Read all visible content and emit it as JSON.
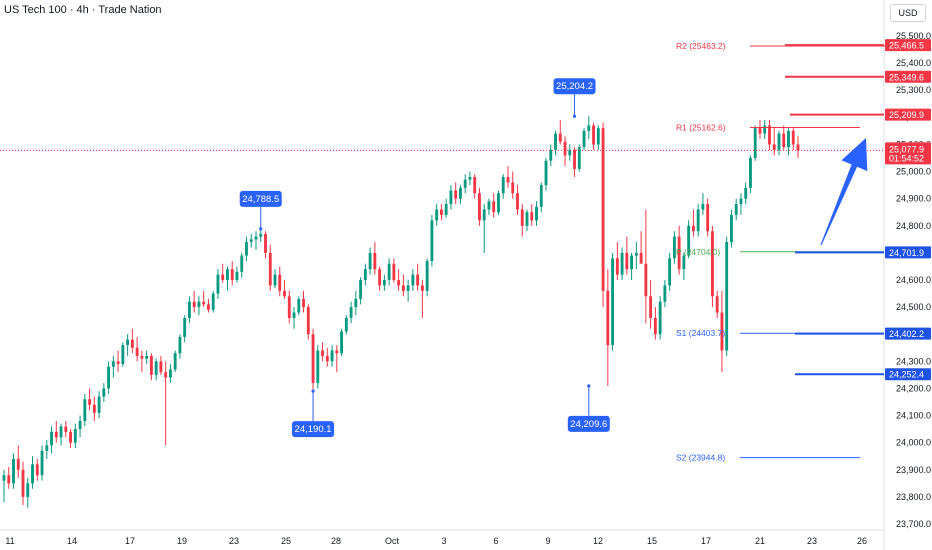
{
  "header": {
    "title": "US Tech 100 · 4h · Trade Nation",
    "currency": "USD"
  },
  "chart_data": {
    "type": "candlestick",
    "x_tick_labels": [
      "11",
      "14",
      "17",
      "19",
      "23",
      "25",
      "28",
      "Oct",
      "3",
      "6",
      "9",
      "12",
      "15",
      "17",
      "21",
      "23",
      "26"
    ],
    "y_tick_labels": [
      "25,500.0",
      "25,400.0",
      "25,300.0",
      "25,200.0",
      "25,100.0",
      "25,000.0",
      "24,900.0",
      "24,800.0",
      "24,700.0",
      "24,600.0",
      "24,500.0",
      "24,400.0",
      "24,300.0",
      "24,200.0",
      "24,100.0",
      "24,000.0",
      "23,900.0",
      "23,800.0",
      "23,700.0"
    ],
    "ylim": [
      23700,
      25500
    ],
    "last_price": {
      "value": 25077.9,
      "label": "25,077.9",
      "countdown": "01:54:52",
      "color": "#f23645"
    },
    "pivot_levels": [
      {
        "name": "R2",
        "label": "R2 (25463.2)",
        "value": 25463.2,
        "color": "#f23645"
      },
      {
        "name": "R1",
        "label": "R1 (25162.6)",
        "value": 25162.6,
        "color": "#f23645"
      },
      {
        "name": "P",
        "label": "P (24704.0)",
        "value": 24704.0,
        "color": "#4caf50"
      },
      {
        "name": "S1",
        "label": "S1 (24403.7)",
        "value": 24403.7,
        "color": "#2962ff"
      },
      {
        "name": "S2",
        "label": "S2 (23944.8)",
        "value": 23944.8,
        "color": "#2962ff"
      }
    ],
    "horizontal_levels": [
      {
        "value": 25466.5,
        "label": "25,466.5",
        "color": "#f23645"
      },
      {
        "value": 25349.6,
        "label": "25,349.6",
        "color": "#f23645"
      },
      {
        "value": 25209.9,
        "label": "25,209.9",
        "color": "#f23645"
      },
      {
        "value": 24701.9,
        "label": "24,701.9",
        "color": "#1e53e5"
      },
      {
        "value": 24402.2,
        "label": "24,402.2",
        "color": "#1e53e5"
      },
      {
        "value": 24252.4,
        "label": "24,252.4",
        "color": "#1e53e5"
      }
    ],
    "extreme_labels": [
      {
        "label": "24,788.5",
        "value": 24788.5,
        "kind": "high"
      },
      {
        "label": "24,190.1",
        "value": 24190.1,
        "kind": "low"
      },
      {
        "label": "25,204.2",
        "value": 25204.2,
        "kind": "high"
      },
      {
        "label": "24,209.6",
        "value": 24209.6,
        "kind": "low"
      }
    ],
    "candles_ohlc": [
      [
        23860,
        23900,
        23780,
        23880
      ],
      [
        23880,
        23910,
        23830,
        23850
      ],
      [
        23850,
        23960,
        23830,
        23940
      ],
      [
        23940,
        23990,
        23870,
        23900
      ],
      [
        23900,
        23930,
        23770,
        23800
      ],
      [
        23800,
        23870,
        23760,
        23850
      ],
      [
        23850,
        23950,
        23830,
        23920
      ],
      [
        23920,
        23940,
        23860,
        23880
      ],
      [
        23880,
        23990,
        23860,
        23970
      ],
      [
        23970,
        24010,
        23940,
        23990
      ],
      [
        23990,
        24060,
        23960,
        24040
      ],
      [
        24040,
        24080,
        24000,
        24020
      ],
      [
        24020,
        24070,
        23990,
        24060
      ],
      [
        24060,
        24080,
        24020,
        24040
      ],
      [
        24040,
        24050,
        23980,
        24000
      ],
      [
        24000,
        24070,
        23980,
        24050
      ],
      [
        24050,
        24100,
        24020,
        24080
      ],
      [
        24080,
        24180,
        24060,
        24160
      ],
      [
        24160,
        24200,
        24120,
        24140
      ],
      [
        24140,
        24170,
        24080,
        24110
      ],
      [
        24110,
        24190,
        24090,
        24170
      ],
      [
        24170,
        24220,
        24150,
        24200
      ],
      [
        24200,
        24300,
        24180,
        24280
      ],
      [
        24280,
        24320,
        24240,
        24300
      ],
      [
        24300,
        24340,
        24260,
        24290
      ],
      [
        24290,
        24370,
        24280,
        24360
      ],
      [
        24360,
        24400,
        24320,
        24380
      ],
      [
        24380,
        24420,
        24330,
        24350
      ],
      [
        24350,
        24390,
        24300,
        24320
      ],
      [
        24320,
        24340,
        24260,
        24310
      ],
      [
        24310,
        24340,
        24290,
        24320
      ],
      [
        24320,
        24330,
        24230,
        24250
      ],
      [
        24250,
        24310,
        24230,
        24300
      ],
      [
        24300,
        24320,
        24250,
        24260
      ],
      [
        24260,
        24300,
        23990,
        24240
      ],
      [
        24240,
        24290,
        24220,
        24270
      ],
      [
        24270,
        24340,
        24260,
        24330
      ],
      [
        24330,
        24400,
        24310,
        24390
      ],
      [
        24390,
        24470,
        24370,
        24460
      ],
      [
        24460,
        24540,
        24440,
        24520
      ],
      [
        24520,
        24560,
        24480,
        24500
      ],
      [
        24500,
        24540,
        24470,
        24520
      ],
      [
        24520,
        24560,
        24500,
        24510
      ],
      [
        24510,
        24530,
        24480,
        24490
      ],
      [
        24490,
        24560,
        24480,
        24550
      ],
      [
        24550,
        24640,
        24530,
        24620
      ],
      [
        24620,
        24660,
        24590,
        24600
      ],
      [
        24600,
        24650,
        24560,
        24640
      ],
      [
        24640,
        24670,
        24580,
        24600
      ],
      [
        24600,
        24650,
        24590,
        24630
      ],
      [
        24630,
        24700,
        24610,
        24690
      ],
      [
        24690,
        24760,
        24670,
        24740
      ],
      [
        24740,
        24770,
        24720,
        24750
      ],
      [
        24750,
        24780,
        24710,
        24760
      ],
      [
        24760,
        24788.5,
        24740,
        24770
      ],
      [
        24770,
        24780,
        24680,
        24700
      ],
      [
        24700,
        24730,
        24560,
        24580
      ],
      [
        24580,
        24640,
        24570,
        24620
      ],
      [
        24620,
        24650,
        24540,
        24560
      ],
      [
        24560,
        24600,
        24530,
        24540
      ],
      [
        24540,
        24560,
        24440,
        24460
      ],
      [
        24460,
        24500,
        24420,
        24480
      ],
      [
        24480,
        24540,
        24470,
        24530
      ],
      [
        24530,
        24560,
        24480,
        24500
      ],
      [
        24500,
        24510,
        24380,
        24400
      ],
      [
        24400,
        24420,
        24190.1,
        24220
      ],
      [
        24220,
        24360,
        24200,
        24340
      ],
      [
        24340,
        24370,
        24300,
        24320
      ],
      [
        24320,
        24350,
        24280,
        24300
      ],
      [
        24300,
        24360,
        24280,
        24340
      ],
      [
        24340,
        24360,
        24260,
        24330
      ],
      [
        24330,
        24420,
        24320,
        24410
      ],
      [
        24410,
        24470,
        24400,
        24460
      ],
      [
        24460,
        24520,
        24440,
        24500
      ],
      [
        24500,
        24560,
        24470,
        24530
      ],
      [
        24530,
        24610,
        24510,
        24600
      ],
      [
        24600,
        24660,
        24580,
        24640
      ],
      [
        24640,
        24720,
        24620,
        24700
      ],
      [
        24700,
        24740,
        24620,
        24640
      ],
      [
        24640,
        24650,
        24560,
        24580
      ],
      [
        24580,
        24620,
        24560,
        24600
      ],
      [
        24600,
        24680,
        24580,
        24660
      ],
      [
        24660,
        24680,
        24590,
        24600
      ],
      [
        24600,
        24640,
        24560,
        24580
      ],
      [
        24580,
        24620,
        24540,
        24560
      ],
      [
        24560,
        24600,
        24520,
        24580
      ],
      [
        24580,
        24640,
        24560,
        24620
      ],
      [
        24620,
        24660,
        24560,
        24580
      ],
      [
        24580,
        24600,
        24460,
        24560
      ],
      [
        24560,
        24680,
        24540,
        24670
      ],
      [
        24670,
        24840,
        24650,
        24820
      ],
      [
        24820,
        24880,
        24800,
        24860
      ],
      [
        24860,
        24880,
        24820,
        24840
      ],
      [
        24840,
        24900,
        24830,
        24880
      ],
      [
        24880,
        24950,
        24860,
        24930
      ],
      [
        24930,
        24960,
        24880,
        24900
      ],
      [
        24900,
        24950,
        24880,
        24940
      ],
      [
        24940,
        24990,
        24920,
        24970
      ],
      [
        24970,
        25000,
        24950,
        24980
      ],
      [
        24980,
        24990,
        24900,
        24920
      ],
      [
        24920,
        24940,
        24800,
        24820
      ],
      [
        24820,
        24880,
        24700,
        24860
      ],
      [
        24860,
        24900,
        24840,
        24890
      ],
      [
        24890,
        24920,
        24830,
        24850
      ],
      [
        24850,
        24930,
        24840,
        24920
      ],
      [
        24920,
        24990,
        24900,
        24980
      ],
      [
        24980,
        25020,
        24940,
        24960
      ],
      [
        24960,
        25000,
        24900,
        24920
      ],
      [
        24920,
        24950,
        24840,
        24860
      ],
      [
        24860,
        24880,
        24760,
        24800
      ],
      [
        24800,
        24860,
        24780,
        24850
      ],
      [
        24850,
        24880,
        24800,
        24820
      ],
      [
        24820,
        24890,
        24800,
        24870
      ],
      [
        24870,
        24960,
        24850,
        24950
      ],
      [
        24950,
        25050,
        24930,
        25040
      ],
      [
        25040,
        25100,
        25020,
        25080
      ],
      [
        25080,
        25150,
        25060,
        25140
      ],
      [
        25140,
        25190,
        25100,
        25110
      ],
      [
        25110,
        25130,
        25020,
        25060
      ],
      [
        25060,
        25100,
        25040,
        25080
      ],
      [
        25080,
        25090,
        24980,
        25010
      ],
      [
        25010,
        25100,
        25000,
        25090
      ],
      [
        25090,
        25160,
        25080,
        25150
      ],
      [
        25150,
        25204.2,
        25120,
        25170
      ],
      [
        25170,
        25180,
        25080,
        25100
      ],
      [
        25100,
        25170,
        25080,
        25160
      ],
      [
        25160,
        25180,
        24500,
        24560
      ],
      [
        24560,
        24640,
        24209.6,
        24360
      ],
      [
        24360,
        24700,
        24340,
        24680
      ],
      [
        24680,
        24740,
        24600,
        24620
      ],
      [
        24620,
        24720,
        24600,
        24700
      ],
      [
        24700,
        24760,
        24620,
        24640
      ],
      [
        24640,
        24700,
        24600,
        24690
      ],
      [
        24690,
        24740,
        24640,
        24700
      ],
      [
        24700,
        24780,
        24680,
        24660
      ],
      [
        24660,
        24860,
        24440,
        24540
      ],
      [
        24540,
        24600,
        24420,
        24460
      ],
      [
        24460,
        24500,
        24380,
        24400
      ],
      [
        24400,
        24540,
        24380,
        24520
      ],
      [
        24520,
        24600,
        24500,
        24580
      ],
      [
        24580,
        24700,
        24560,
        24680
      ],
      [
        24680,
        24780,
        24660,
        24760
      ],
      [
        24760,
        24800,
        24620,
        24640
      ],
      [
        24640,
        24700,
        24600,
        24690
      ],
      [
        24690,
        24820,
        24680,
        24800
      ],
      [
        24800,
        24860,
        24760,
        24780
      ],
      [
        24780,
        24880,
        24760,
        24860
      ],
      [
        24860,
        24920,
        24840,
        24880
      ],
      [
        24880,
        24900,
        24760,
        24780
      ],
      [
        24780,
        24800,
        24500,
        24540
      ],
      [
        24540,
        24560,
        24460,
        24480
      ],
      [
        24480,
        24560,
        24260,
        24340
      ],
      [
        24340,
        24760,
        24320,
        24740
      ],
      [
        24740,
        24860,
        24720,
        24840
      ],
      [
        24840,
        24900,
        24820,
        24880
      ],
      [
        24880,
        24920,
        24840,
        24900
      ],
      [
        24900,
        24960,
        24880,
        24940
      ],
      [
        24940,
        25060,
        24920,
        25050
      ],
      [
        25050,
        25170,
        25040,
        25160
      ],
      [
        25160,
        25190,
        25120,
        25140
      ],
      [
        25140,
        25190,
        25120,
        25170
      ],
      [
        25170,
        25190,
        25080,
        25100
      ],
      [
        25100,
        25160,
        25060,
        25080
      ],
      [
        25080,
        25150,
        25060,
        25140
      ],
      [
        25140,
        25170,
        25080,
        25090
      ],
      [
        25090,
        25160,
        25060,
        25150
      ],
      [
        25150,
        25160,
        25080,
        25100
      ],
      [
        25100,
        25130,
        25050,
        25077.9
      ]
    ]
  }
}
